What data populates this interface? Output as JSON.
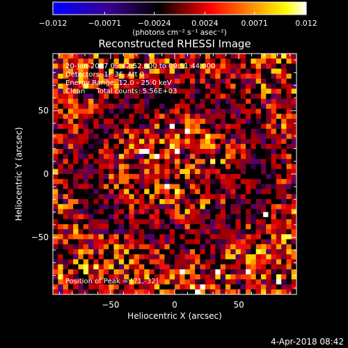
{
  "chart_data": {
    "type": "heatmap",
    "title": "Reconstructed RHESSI Image",
    "colorbar": {
      "ticks": [
        "−0.012",
        "−0.0071",
        "−0.0024",
        "0.0024",
        "0.0071",
        "0.012"
      ],
      "units": "(photons cm⁻² s⁻¹ asec⁻²)",
      "range": [
        -0.012,
        0.012
      ],
      "colors": [
        "#0000ff",
        "#000000",
        "#ff0000",
        "#ffff00",
        "#ffffff"
      ]
    },
    "xlabel": "Heliocentric X (arcsec)",
    "ylabel": "Heliocentric Y (arcsec)",
    "xlim": [
      -95,
      95
    ],
    "ylim": [
      -95,
      95
    ],
    "xticks": [
      {
        "value": -50,
        "label": "−50"
      },
      {
        "value": 0,
        "label": "0"
      },
      {
        "value": 50,
        "label": "50"
      }
    ],
    "yticks": [
      {
        "value": 50,
        "label": "50"
      },
      {
        "value": 0,
        "label": "0"
      },
      {
        "value": -50,
        "label": "−50"
      }
    ],
    "grid": false,
    "annotations": [
      "20-Jan-2017 09:42:52.000 to 09:51:44.000",
      "Detectors: 1F 3F, Att 0",
      "Energy Range: 12.0 - 25.0 keV",
      "Clean     Total counts: 5.56E+03"
    ],
    "peak_label": "Position of Peak = [71,-32]",
    "peak_position": [
      71,
      -32
    ]
  },
  "footer": {
    "date": "4-Apr-2018 08:42"
  }
}
